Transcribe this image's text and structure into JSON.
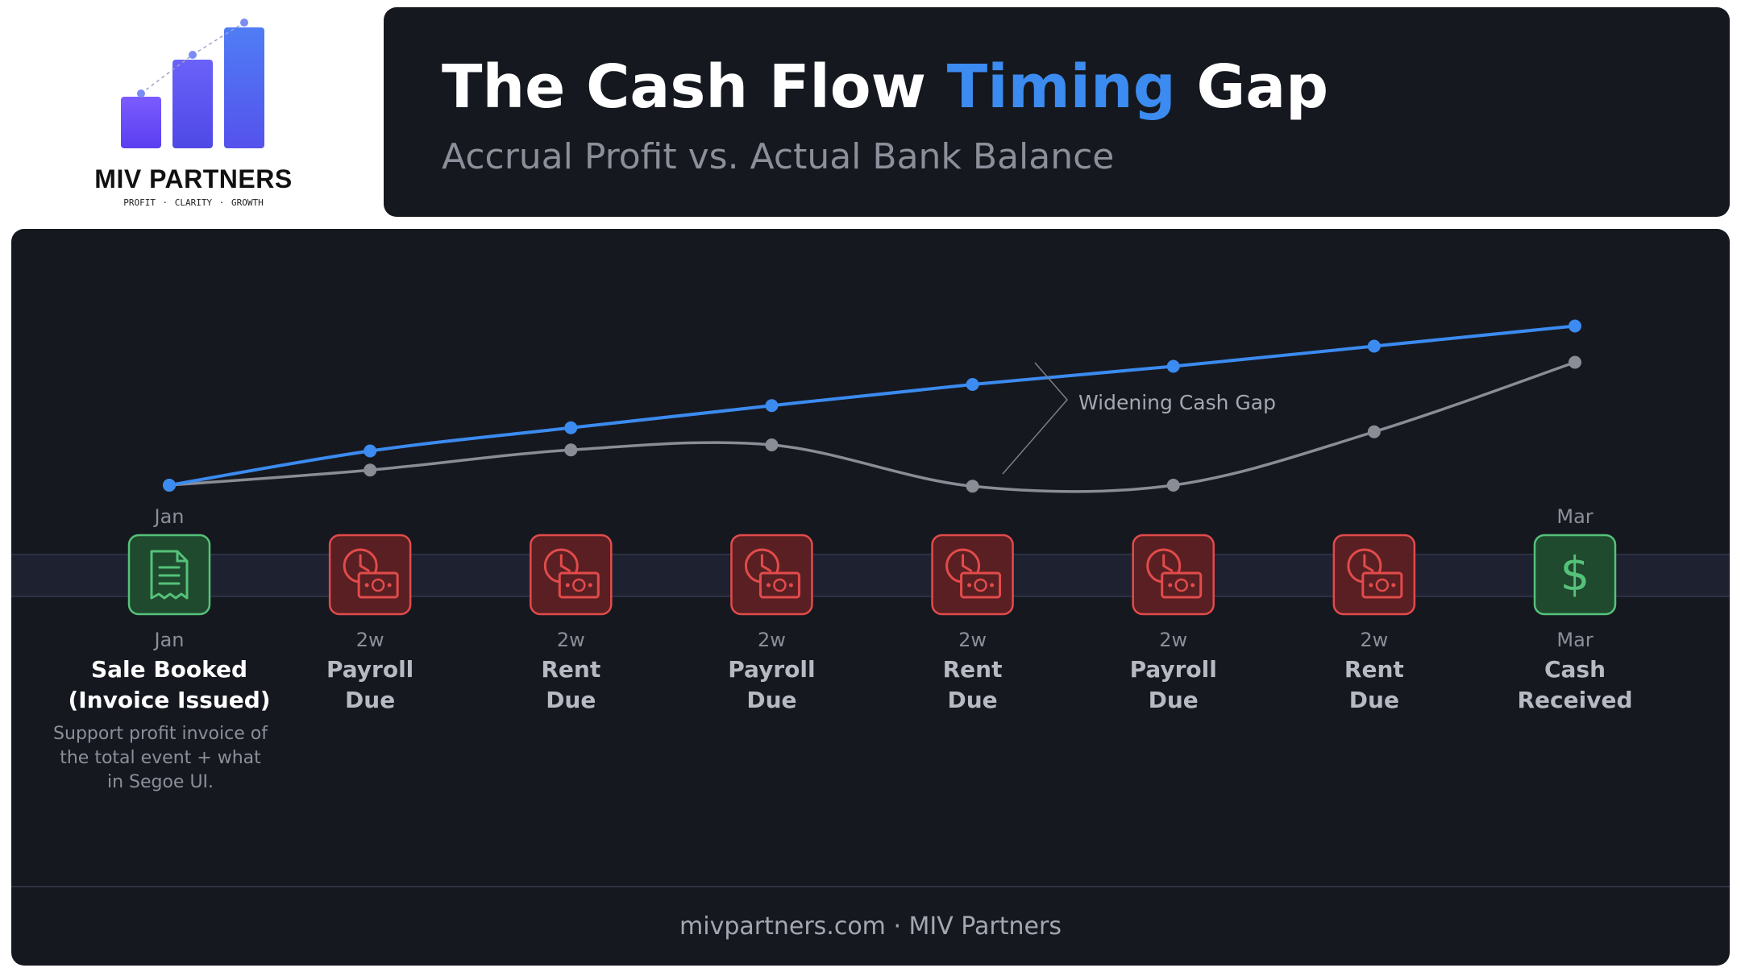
{
  "logo": {
    "name": "MIV PARTNERS",
    "tagline": "PROFIT · CLARITY · GROWTH",
    "colors": [
      "#6d4cf6",
      "#5a54ee",
      "#4a66f0"
    ]
  },
  "header": {
    "title_part1": "The Cash Flow ",
    "title_highlight": "Timing",
    "title_part2": " Gap",
    "subtitle": "Accrual Profit vs. Actual Bank Balance"
  },
  "colors": {
    "accent": "#3b8bf0",
    "cash_line": "#8a8d96",
    "due_red": "#e24b4b",
    "due_bg": "#5a1f22",
    "received_green": "#55c27a",
    "received_bg": "#1f4a2e",
    "panel_bg": "#161820"
  },
  "chart_data": {
    "type": "line",
    "x": [
      "Jan",
      "2w",
      "2w",
      "2w",
      "2w",
      "2w",
      "2w",
      "Mar"
    ],
    "series": [
      {
        "color": "#3b8bf0",
        "values": [
          0,
          34,
          57,
          79,
          100,
          118,
          138,
          158
        ]
      },
      {
        "color": "#8a8d96",
        "values": [
          0,
          15,
          35,
          40,
          -1,
          0,
          53,
          122
        ]
      }
    ],
    "ylim": [
      -20,
      200
    ],
    "axis_start_label": "Jan",
    "axis_end_label": "Mar",
    "annotation": "Widening Cash Gap",
    "grid": false,
    "legend": "none"
  },
  "events": [
    {
      "period": "Jan",
      "line1": "Sale Booked",
      "line2": "(Invoice Issued)",
      "kind": "invoice",
      "icon": "receipt-icon"
    },
    {
      "period": "2w",
      "line1": "Payroll",
      "line2": "Due",
      "kind": "due",
      "icon": "clock-money-icon"
    },
    {
      "period": "2w",
      "line1": "Rent",
      "line2": "Due",
      "kind": "due",
      "icon": "clock-money-icon"
    },
    {
      "period": "2w",
      "line1": "Payroll",
      "line2": "Due",
      "kind": "due",
      "icon": "clock-money-icon"
    },
    {
      "period": "2w",
      "line1": "Rent",
      "line2": "Due",
      "kind": "due",
      "icon": "clock-money-icon"
    },
    {
      "period": "2w",
      "line1": "Payroll",
      "line2": "Due",
      "kind": "due",
      "icon": "clock-money-icon"
    },
    {
      "period": "2w",
      "line1": "Rent",
      "line2": "Due",
      "kind": "due",
      "icon": "clock-money-icon"
    },
    {
      "period": "Mar",
      "line1": "Cash",
      "line2": "Received",
      "kind": "received",
      "icon": "dollar-icon"
    }
  ],
  "event_description": "Support profit invoice of the total event + what in Segoe UI.",
  "footer": "mivpartners.com · MIV Partners"
}
